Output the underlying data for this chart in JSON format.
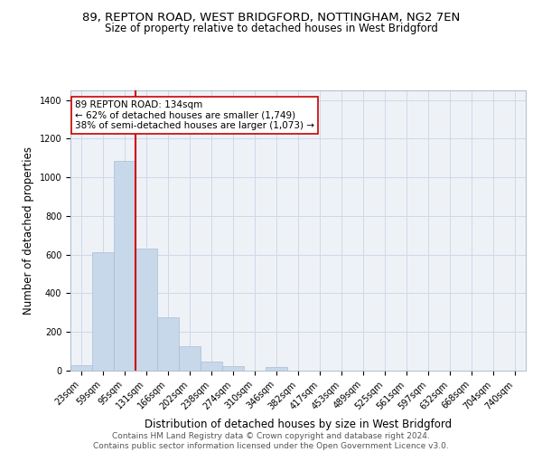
{
  "title_line1": "89, REPTON ROAD, WEST BRIDGFORD, NOTTINGHAM, NG2 7EN",
  "title_line2": "Size of property relative to detached houses in West Bridgford",
  "xlabel": "Distribution of detached houses by size in West Bridgford",
  "ylabel": "Number of detached properties",
  "bin_labels": [
    "23sqm",
    "59sqm",
    "95sqm",
    "131sqm",
    "166sqm",
    "202sqm",
    "238sqm",
    "274sqm",
    "310sqm",
    "346sqm",
    "382sqm",
    "417sqm",
    "453sqm",
    "489sqm",
    "525sqm",
    "561sqm",
    "597sqm",
    "632sqm",
    "668sqm",
    "704sqm",
    "740sqm"
  ],
  "bar_heights": [
    30,
    612,
    1085,
    632,
    275,
    128,
    45,
    22,
    0,
    17,
    0,
    0,
    0,
    0,
    0,
    0,
    0,
    0,
    0,
    0,
    0
  ],
  "bar_color": "#c8d8eb",
  "bar_edge_color": "#a8bdd0",
  "grid_color": "#d0d8e8",
  "vline_color": "#cc0000",
  "vline_x_idx": 3,
  "annotation_text_line1": "89 REPTON ROAD: 134sqm",
  "annotation_text_line2": "← 62% of detached houses are smaller (1,749)",
  "annotation_text_line3": "38% of semi-detached houses are larger (1,073) →",
  "annotation_box_color": "#ffffff",
  "annotation_box_edge": "#cc0000",
  "ylim": [
    0,
    1450
  ],
  "yticks": [
    0,
    200,
    400,
    600,
    800,
    1000,
    1200,
    1400
  ],
  "footer_line1": "Contains HM Land Registry data © Crown copyright and database right 2024.",
  "footer_line2": "Contains public sector information licensed under the Open Government Licence v3.0.",
  "bg_color": "#eef2f7",
  "title_fontsize": 9.5,
  "subtitle_fontsize": 8.5,
  "axis_label_fontsize": 8.5,
  "tick_fontsize": 7,
  "annotation_fontsize": 7.5,
  "footer_fontsize": 6.5
}
